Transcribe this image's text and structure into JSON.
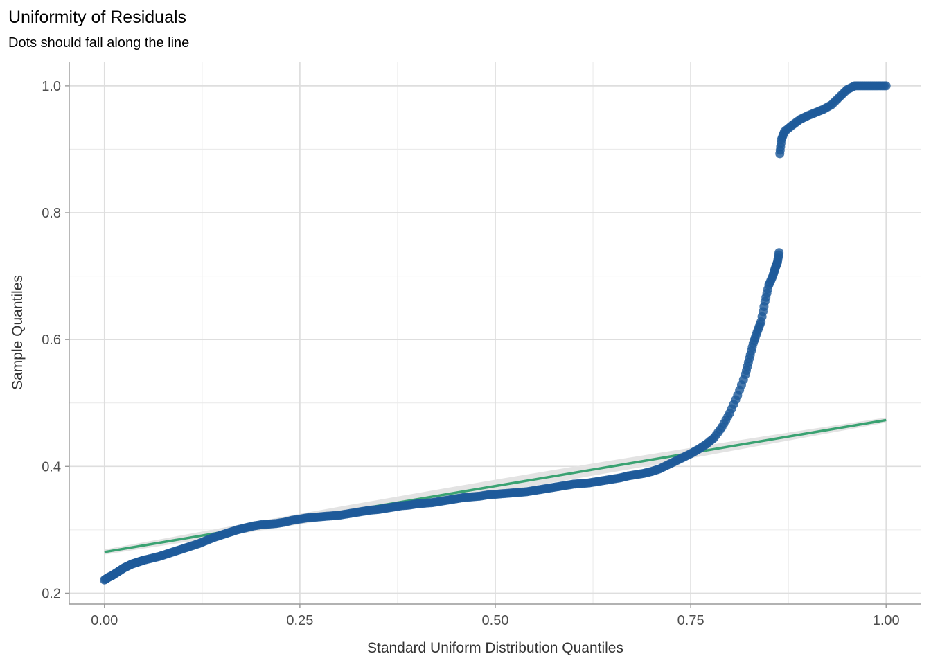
{
  "chart_data": {
    "type": "scatter",
    "title": "Uniformity of Residuals",
    "subtitle": "Dots should fall along the line",
    "xlabel": "Standard Uniform Distribution Quantiles",
    "ylabel": "Sample Quantiles",
    "xlim": [
      -0.045,
      1.045
    ],
    "ylim": [
      0.183,
      1.037
    ],
    "x_ticks": [
      0.0,
      0.25,
      0.5,
      0.75,
      1.0
    ],
    "x_tick_labels": [
      "0.00",
      "0.25",
      "0.50",
      "0.75",
      "1.00"
    ],
    "y_ticks": [
      0.2,
      0.4,
      0.6,
      0.8,
      1.0
    ],
    "y_tick_labels": [
      "0.2",
      "0.4",
      "0.6",
      "0.8",
      "1.0"
    ],
    "grid": true,
    "reference_line": {
      "x": [
        0.0,
        1.0
      ],
      "y": [
        0.265,
        0.473
      ],
      "color": "#3aa272"
    },
    "points_color": "#1f5a9a",
    "points": [
      [
        0.0,
        0.221
      ],
      [
        0.005,
        0.225
      ],
      [
        0.01,
        0.228
      ],
      [
        0.015,
        0.232
      ],
      [
        0.02,
        0.236
      ],
      [
        0.025,
        0.24
      ],
      [
        0.03,
        0.243
      ],
      [
        0.035,
        0.246
      ],
      [
        0.04,
        0.248
      ],
      [
        0.045,
        0.25
      ],
      [
        0.05,
        0.252
      ],
      [
        0.06,
        0.255
      ],
      [
        0.07,
        0.258
      ],
      [
        0.08,
        0.262
      ],
      [
        0.09,
        0.266
      ],
      [
        0.1,
        0.27
      ],
      [
        0.11,
        0.274
      ],
      [
        0.12,
        0.278
      ],
      [
        0.13,
        0.283
      ],
      [
        0.14,
        0.288
      ],
      [
        0.15,
        0.292
      ],
      [
        0.16,
        0.296
      ],
      [
        0.17,
        0.3
      ],
      [
        0.18,
        0.303
      ],
      [
        0.19,
        0.306
      ],
      [
        0.2,
        0.308
      ],
      [
        0.21,
        0.309
      ],
      [
        0.22,
        0.31
      ],
      [
        0.23,
        0.312
      ],
      [
        0.24,
        0.315
      ],
      [
        0.25,
        0.317
      ],
      [
        0.26,
        0.319
      ],
      [
        0.27,
        0.32
      ],
      [
        0.28,
        0.321
      ],
      [
        0.29,
        0.322
      ],
      [
        0.3,
        0.323
      ],
      [
        0.31,
        0.325
      ],
      [
        0.32,
        0.327
      ],
      [
        0.33,
        0.329
      ],
      [
        0.34,
        0.331
      ],
      [
        0.35,
        0.332
      ],
      [
        0.36,
        0.334
      ],
      [
        0.37,
        0.336
      ],
      [
        0.38,
        0.338
      ],
      [
        0.39,
        0.339
      ],
      [
        0.4,
        0.341
      ],
      [
        0.41,
        0.342
      ],
      [
        0.42,
        0.343
      ],
      [
        0.43,
        0.345
      ],
      [
        0.44,
        0.347
      ],
      [
        0.45,
        0.349
      ],
      [
        0.46,
        0.351
      ],
      [
        0.47,
        0.352
      ],
      [
        0.48,
        0.353
      ],
      [
        0.49,
        0.355
      ],
      [
        0.5,
        0.356
      ],
      [
        0.51,
        0.357
      ],
      [
        0.52,
        0.358
      ],
      [
        0.53,
        0.359
      ],
      [
        0.54,
        0.36
      ],
      [
        0.55,
        0.362
      ],
      [
        0.56,
        0.364
      ],
      [
        0.57,
        0.366
      ],
      [
        0.58,
        0.368
      ],
      [
        0.59,
        0.37
      ],
      [
        0.6,
        0.372
      ],
      [
        0.61,
        0.373
      ],
      [
        0.62,
        0.374
      ],
      [
        0.63,
        0.376
      ],
      [
        0.64,
        0.378
      ],
      [
        0.65,
        0.38
      ],
      [
        0.66,
        0.382
      ],
      [
        0.67,
        0.385
      ],
      [
        0.68,
        0.387
      ],
      [
        0.69,
        0.389
      ],
      [
        0.7,
        0.392
      ],
      [
        0.71,
        0.396
      ],
      [
        0.72,
        0.402
      ],
      [
        0.73,
        0.408
      ],
      [
        0.74,
        0.414
      ],
      [
        0.75,
        0.42
      ],
      [
        0.76,
        0.427
      ],
      [
        0.77,
        0.435
      ],
      [
        0.78,
        0.445
      ],
      [
        0.79,
        0.462
      ],
      [
        0.8,
        0.484
      ],
      [
        0.81,
        0.512
      ],
      [
        0.82,
        0.545
      ],
      [
        0.825,
        0.57
      ],
      [
        0.83,
        0.594
      ],
      [
        0.835,
        0.612
      ],
      [
        0.84,
        0.628
      ],
      [
        0.845,
        0.66
      ],
      [
        0.85,
        0.686
      ],
      [
        0.855,
        0.7
      ],
      [
        0.858,
        0.712
      ],
      [
        0.861,
        0.722
      ],
      [
        0.863,
        0.737
      ],
      [
        0.864,
        0.893
      ],
      [
        0.866,
        0.915
      ],
      [
        0.87,
        0.928
      ],
      [
        0.88,
        0.938
      ],
      [
        0.89,
        0.947
      ],
      [
        0.9,
        0.953
      ],
      [
        0.91,
        0.958
      ],
      [
        0.92,
        0.963
      ],
      [
        0.93,
        0.97
      ],
      [
        0.94,
        0.982
      ],
      [
        0.95,
        0.994
      ],
      [
        0.96,
        1.0
      ],
      [
        0.97,
        1.0
      ],
      [
        0.98,
        1.0
      ],
      [
        0.99,
        1.0
      ],
      [
        1.0,
        1.0
      ]
    ]
  }
}
